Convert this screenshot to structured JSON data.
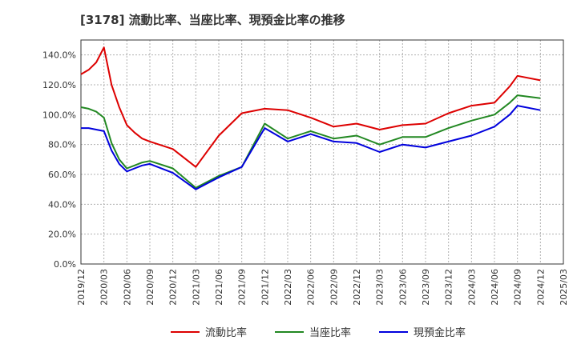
{
  "chart_data": {
    "type": "line",
    "title": "[3178]  流動比率、当座比率、現預金比率の推移",
    "xlabel": "",
    "ylabel": "",
    "ylim": [
      0,
      150
    ],
    "y_ticks": [
      "0.0%",
      "20.0%",
      "40.0%",
      "60.0%",
      "80.0%",
      "100.0%",
      "120.0%",
      "140.0%"
    ],
    "y_tick_values": [
      0,
      20,
      40,
      60,
      80,
      100,
      120,
      140
    ],
    "x_tick_labels": [
      "2019/12",
      "2020/03",
      "2020/06",
      "2020/09",
      "2020/12",
      "2021/03",
      "2021/06",
      "2021/09",
      "2021/12",
      "2022/03",
      "2022/06",
      "2022/09",
      "2022/12",
      "2023/03",
      "2023/06",
      "2023/09",
      "2023/12",
      "2024/03",
      "2024/06",
      "2024/09",
      "2024/12",
      "2025/03"
    ],
    "x_range_months": [
      0,
      63
    ],
    "grid": true,
    "legend_position": "bottom",
    "series": [
      {
        "name": "流動比率",
        "color": "#dd0000",
        "x": [
          0,
          1,
          2,
          3,
          4,
          5,
          6,
          7,
          8,
          9,
          12,
          15,
          18,
          21,
          24,
          27,
          30,
          33,
          36,
          39,
          42,
          45,
          48,
          51,
          54,
          56,
          57,
          60
        ],
        "values": [
          127,
          130,
          135,
          145,
          120,
          105,
          93,
          88,
          84,
          82,
          77,
          65,
          86,
          101,
          104,
          103,
          98,
          92,
          94,
          90,
          93,
          94,
          101,
          106,
          108,
          119,
          126,
          123
        ]
      },
      {
        "name": "当座比率",
        "color": "#228822",
        "x": [
          0,
          1,
          2,
          3,
          4,
          5,
          6,
          7,
          8,
          9,
          12,
          15,
          18,
          21,
          24,
          27,
          30,
          33,
          36,
          39,
          42,
          45,
          48,
          51,
          54,
          56,
          57,
          60
        ],
        "values": [
          105,
          104,
          102,
          98,
          81,
          70,
          64,
          66,
          68,
          69,
          64,
          51,
          59,
          65,
          94,
          84,
          89,
          84,
          86,
          80,
          85,
          85,
          91,
          96,
          100,
          108,
          113,
          111
        ]
      },
      {
        "name": "現預金比率",
        "color": "#0000dd",
        "x": [
          0,
          1,
          2,
          3,
          4,
          5,
          6,
          7,
          8,
          9,
          12,
          15,
          18,
          21,
          24,
          27,
          30,
          33,
          36,
          39,
          42,
          45,
          48,
          51,
          54,
          56,
          57,
          60
        ],
        "values": [
          91,
          91,
          90,
          89,
          76,
          67,
          62,
          64,
          66,
          67,
          61,
          50,
          58,
          65,
          91,
          82,
          87,
          82,
          81,
          75,
          80,
          78,
          82,
          86,
          92,
          100,
          106,
          103
        ]
      }
    ]
  }
}
